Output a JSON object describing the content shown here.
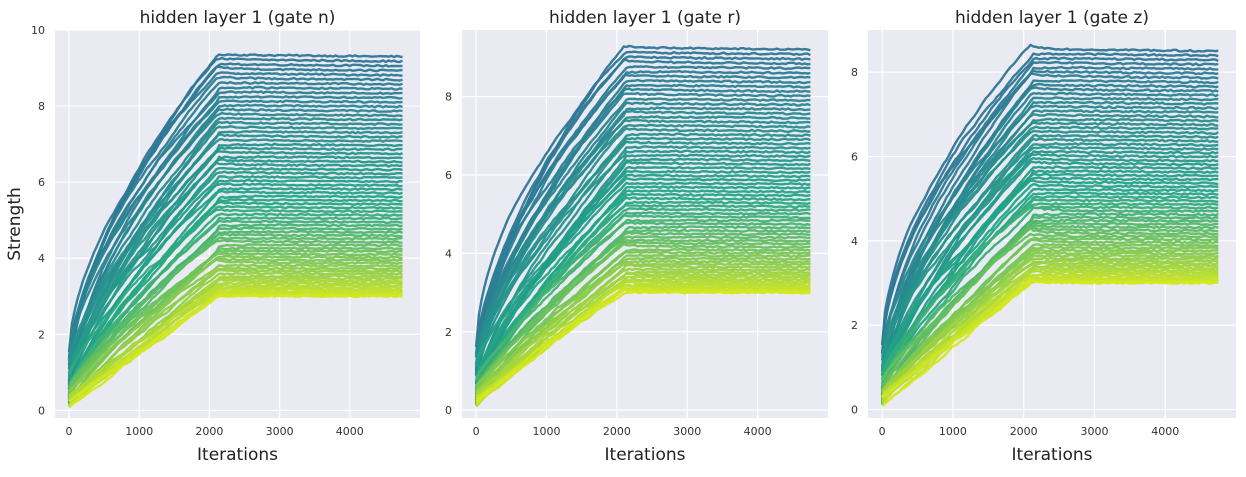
{
  "figure": {
    "ylabel": "Strength"
  },
  "chart_data": [
    {
      "type": "line",
      "title": "hidden layer 1 (gate n)",
      "xlabel": "Iterations",
      "ylabel": "Strength",
      "xlim": [
        -200,
        5000
      ],
      "ylim": [
        -0.2,
        10
      ],
      "x_ticks": [
        0,
        1000,
        2000,
        3000,
        4000
      ],
      "y_ticks": [
        0,
        2,
        4,
        6,
        8,
        10
      ],
      "grid": true,
      "n_series": 70,
      "x_end": 4750,
      "plateau_start": 2130,
      "final_strength_min": 3.0,
      "final_strength_max": 9.35,
      "colormap": {
        "low": "#d4e81e",
        "mid": "#21a685",
        "high": "#2e7596"
      }
    },
    {
      "type": "line",
      "title": "hidden layer 1 (gate r)",
      "xlabel": "Iterations",
      "ylabel": "",
      "xlim": [
        -200,
        5000
      ],
      "ylim": [
        -0.2,
        9.7
      ],
      "x_ticks": [
        0,
        1000,
        2000,
        3000,
        4000
      ],
      "y_ticks": [
        0,
        2,
        4,
        6,
        8
      ],
      "grid": true,
      "n_series": 70,
      "x_end": 4750,
      "plateau_start": 2130,
      "final_strength_min": 3.0,
      "final_strength_max": 9.25,
      "colormap": {
        "low": "#d4e81e",
        "mid": "#21a685",
        "high": "#2e7596"
      }
    },
    {
      "type": "line",
      "title": "hidden layer 1 (gate z)",
      "xlabel": "Iterations",
      "ylabel": "",
      "xlim": [
        -200,
        5000
      ],
      "ylim": [
        -0.2,
        9.0
      ],
      "x_ticks": [
        0,
        1000,
        2000,
        3000,
        4000
      ],
      "y_ticks": [
        0,
        2,
        4,
        6,
        8
      ],
      "grid": true,
      "n_series": 70,
      "x_end": 4750,
      "plateau_start": 2130,
      "final_strength_min": 3.0,
      "final_strength_max": 8.55,
      "colormap": {
        "low": "#d4e81e",
        "mid": "#21a685",
        "high": "#2e7596"
      }
    }
  ]
}
